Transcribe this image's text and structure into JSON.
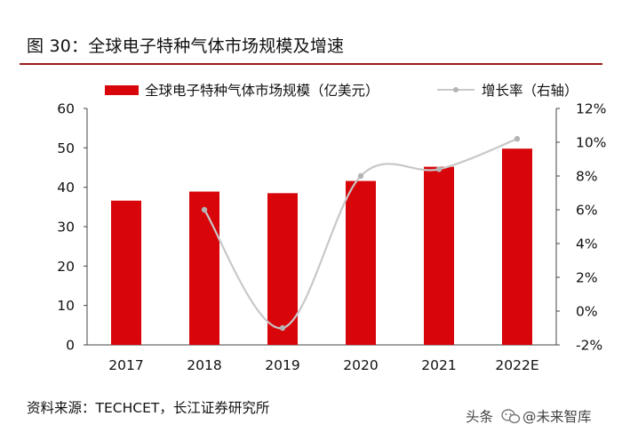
{
  "figure_title": "图 30：全球电子特种气体市场规模及增速",
  "source_note": "资料来源：TECHCET，长江证券研究所",
  "watermark": {
    "text_left": "头条",
    "text_right": "@未来智库",
    "icon": "wechat-logo-icon"
  },
  "colors": {
    "bar": "#d8060a",
    "line": "#c8c8c8",
    "line_marker": "#b4b4b4",
    "axis": "#444444",
    "title_rule": "#9a1b1b"
  },
  "chart_data": {
    "type": "bar",
    "title": "全球电子特种气体市场规模及增速",
    "categories": [
      "2017",
      "2018",
      "2019",
      "2020",
      "2021",
      "2022E"
    ],
    "series": [
      {
        "name": "全球电子特种气体市场规模（亿美元）",
        "type": "bar",
        "axis": "left",
        "values": [
          36.6,
          38.9,
          38.5,
          41.6,
          45.2,
          49.8
        ]
      },
      {
        "name": "增长率（右轴）",
        "type": "line",
        "axis": "right",
        "smooth": true,
        "values": [
          null,
          6.0,
          -1.0,
          8.0,
          8.4,
          10.2
        ]
      }
    ],
    "left_axis": {
      "min": 0,
      "max": 60,
      "step": 10,
      "tick_labels": [
        "0",
        "10",
        "20",
        "30",
        "40",
        "50",
        "60"
      ]
    },
    "right_axis": {
      "min": -2,
      "max": 12,
      "step": 2,
      "tick_labels": [
        "-2%",
        "0%",
        "2%",
        "4%",
        "6%",
        "8%",
        "10%",
        "12%"
      ]
    },
    "xlabel": "",
    "ylabel": "",
    "grid": false,
    "legend_position": "top"
  }
}
